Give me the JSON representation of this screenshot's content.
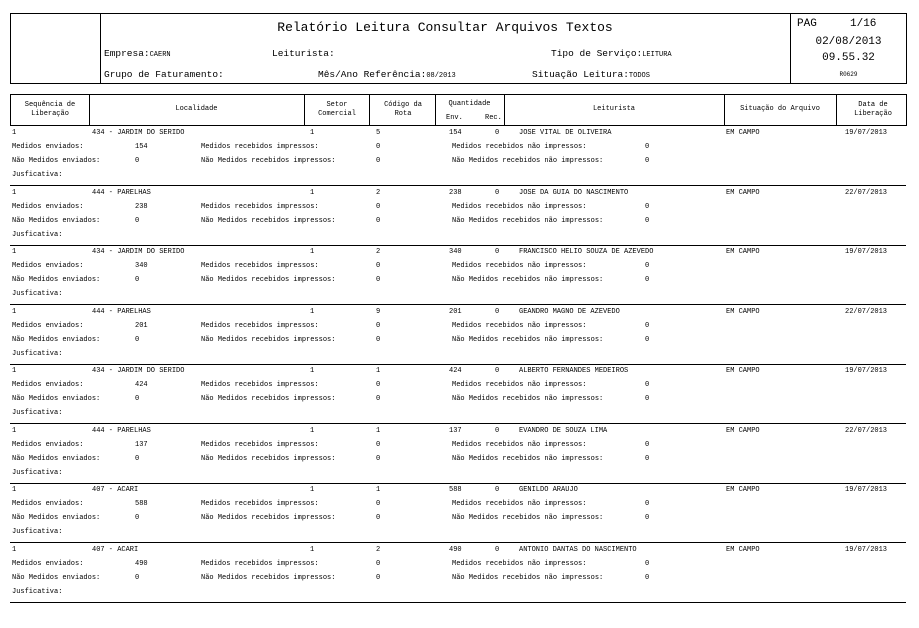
{
  "header": {
    "title": "Relatório Leitura Consultar Arquivos Textos",
    "empresa_label": "Empresa:",
    "empresa": "CAERN",
    "leiturista_label": "Leiturista:",
    "leiturista": "",
    "tipo_servico_label": "Tipo de Serviço:",
    "tipo_servico": "LEITURA",
    "grupo_label": "Grupo de Faturamento:",
    "grupo": "",
    "mes_ano_label": "Mês/Ano Referência:",
    "mes_ano": "08/2013",
    "situacao_label": "Situação Leitura:",
    "situacao": "TODOS",
    "pag_label": "PAG",
    "pag": "1/16",
    "date": "02/08/2013",
    "time": "09.55.32",
    "report_code": "R0629"
  },
  "columns": {
    "seq": "Sequência de Liberação",
    "localidade": "Localidade",
    "setor": "Setor Comercial",
    "rota": "Código da Rota",
    "quantidade": "Quantidade",
    "env": "Env.",
    "rec": "Rec.",
    "leiturista": "Leiturista",
    "situacao": "Situação do Arquivo",
    "data": "Data de Liberação"
  },
  "labels": {
    "medidos_enviados": "Medidos enviados:",
    "nao_medidos_enviados": "Não Medidos enviados:",
    "medidos_rec_impressos": "Medidos recebidos impressos:",
    "nao_medidos_rec_impressos": "Não Medidos recebidos impressos:",
    "medidos_rec_nao_impressos": "Medidos recebidos não impressos:",
    "nao_medidos_rec_nao_impressos": "Não Medidos recebidos não impressos:",
    "justificativa": "Jusficativa:"
  },
  "records": [
    {
      "seq": "1",
      "localidade": "434 - JARDIM DO SERIDO",
      "setor": "1",
      "rota": "5",
      "env": "154",
      "rec": "0",
      "leiturista": "JOSE VITAL DE OLIVEIRA",
      "situacao": "EM CAMPO",
      "data": "19/07/2013",
      "medidos_enviados": "154",
      "nao_medidos_enviados": "0",
      "medidos_rec_impressos": "0",
      "nao_medidos_rec_impressos": "0",
      "medidos_rec_nao_impressos": "0",
      "nao_medidos_rec_nao_impressos": "0",
      "justificativa": ""
    },
    {
      "seq": "1",
      "localidade": "444 - PARELHAS",
      "setor": "1",
      "rota": "2",
      "env": "238",
      "rec": "0",
      "leiturista": "JOSE DA GUIA DO NASCIMENTO",
      "situacao": "EM CAMPO",
      "data": "22/07/2013",
      "medidos_enviados": "238",
      "nao_medidos_enviados": "0",
      "medidos_rec_impressos": "0",
      "nao_medidos_rec_impressos": "0",
      "medidos_rec_nao_impressos": "0",
      "nao_medidos_rec_nao_impressos": "0",
      "justificativa": ""
    },
    {
      "seq": "1",
      "localidade": "434 - JARDIM DO SERIDO",
      "setor": "1",
      "rota": "2",
      "env": "340",
      "rec": "0",
      "leiturista": "FRANCISCO HELIO SOUZA DE AZEVEDO",
      "situacao": "EM CAMPO",
      "data": "19/07/2013",
      "medidos_enviados": "340",
      "nao_medidos_enviados": "0",
      "medidos_rec_impressos": "0",
      "nao_medidos_rec_impressos": "0",
      "medidos_rec_nao_impressos": "0",
      "nao_medidos_rec_nao_impressos": "0",
      "justificativa": ""
    },
    {
      "seq": "1",
      "localidade": "444 - PARELHAS",
      "setor": "1",
      "rota": "9",
      "env": "201",
      "rec": "0",
      "leiturista": "GEANDRO MAGNO DE AZEVEDO",
      "situacao": "EM CAMPO",
      "data": "22/07/2013",
      "medidos_enviados": "201",
      "nao_medidos_enviados": "0",
      "medidos_rec_impressos": "0",
      "nao_medidos_rec_impressos": "0",
      "medidos_rec_nao_impressos": "0",
      "nao_medidos_rec_nao_impressos": "0",
      "justificativa": ""
    },
    {
      "seq": "1",
      "localidade": "434 - JARDIM DO SERIDO",
      "setor": "1",
      "rota": "1",
      "env": "424",
      "rec": "0",
      "leiturista": "ALBERTO FERNANDES MEDEIROS",
      "situacao": "EM CAMPO",
      "data": "19/07/2013",
      "medidos_enviados": "424",
      "nao_medidos_enviados": "0",
      "medidos_rec_impressos": "0",
      "nao_medidos_rec_impressos": "0",
      "medidos_rec_nao_impressos": "0",
      "nao_medidos_rec_nao_impressos": "0",
      "justificativa": ""
    },
    {
      "seq": "1",
      "localidade": "444 - PARELHAS",
      "setor": "1",
      "rota": "1",
      "env": "137",
      "rec": "0",
      "leiturista": "EVANDRO DE SOUZA LIMA",
      "situacao": "EM CAMPO",
      "data": "22/07/2013",
      "medidos_enviados": "137",
      "nao_medidos_enviados": "0",
      "medidos_rec_impressos": "0",
      "nao_medidos_rec_impressos": "0",
      "medidos_rec_nao_impressos": "0",
      "nao_medidos_rec_nao_impressos": "0",
      "justificativa": ""
    },
    {
      "seq": "1",
      "localidade": "407 - ACARI",
      "setor": "1",
      "rota": "1",
      "env": "588",
      "rec": "0",
      "leiturista": "GENILDO ARAUJO",
      "situacao": "EM CAMPO",
      "data": "19/07/2013",
      "medidos_enviados": "588",
      "nao_medidos_enviados": "0",
      "medidos_rec_impressos": "0",
      "nao_medidos_rec_impressos": "0",
      "medidos_rec_nao_impressos": "0",
      "nao_medidos_rec_nao_impressos": "0",
      "justificativa": ""
    },
    {
      "seq": "1",
      "localidade": "407 - ACARI",
      "setor": "1",
      "rota": "2",
      "env": "490",
      "rec": "0",
      "leiturista": "ANTONIO DANTAS DO NASCIMENTO",
      "situacao": "EM CAMPO",
      "data": "19/07/2013",
      "medidos_enviados": "490",
      "nao_medidos_enviados": "0",
      "medidos_rec_impressos": "0",
      "nao_medidos_rec_impressos": "0",
      "medidos_rec_nao_impressos": "0",
      "nao_medidos_rec_nao_impressos": "0",
      "justificativa": ""
    }
  ]
}
